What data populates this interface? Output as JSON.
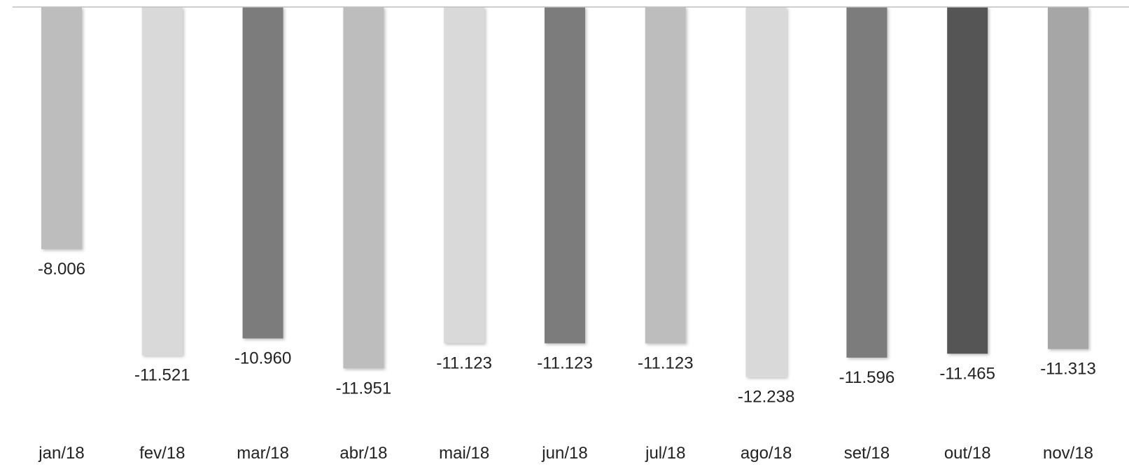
{
  "chart_data": {
    "type": "bar",
    "categories": [
      "jan/18",
      "fev/18",
      "mar/18",
      "abr/18",
      "mai/18",
      "jun/18",
      "jul/18",
      "ago/18",
      "set/18",
      "out/18",
      "nov/18"
    ],
    "values": [
      -8.006,
      -11.521,
      -10.96,
      -11.951,
      -11.123,
      -11.123,
      -11.123,
      -12.238,
      -11.596,
      -11.465,
      -11.313
    ],
    "value_labels": [
      "-8.006",
      "-11.521",
      "-10.960",
      "-11.951",
      "-11.123",
      "-11.123",
      "-11.123",
      "-12.238",
      "-11.596",
      "-11.465",
      "-11.313"
    ],
    "bar_colors": [
      "#bdbdbd",
      "#d9d9d9",
      "#7b7b7b",
      "#bdbdbd",
      "#d9d9d9",
      "#7b7b7b",
      "#bdbdbd",
      "#d9d9d9",
      "#7b7b7b",
      "#555555",
      "#a6a6a6"
    ],
    "axis_color": "#bfbfbf",
    "title": "",
    "xlabel": "",
    "ylabel": "",
    "grid": false,
    "legend": "none"
  }
}
